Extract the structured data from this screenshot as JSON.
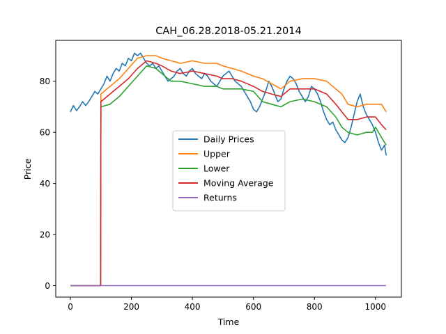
{
  "chart_data": {
    "type": "line",
    "title": "CAH_06.28.2018-05.21.2014",
    "xlabel": "Time",
    "ylabel": "Price",
    "xlim": [
      -48,
      1085
    ],
    "ylim": [
      -4.5,
      96
    ],
    "xticks": [
      0,
      200,
      400,
      600,
      800,
      1000
    ],
    "yticks": [
      0,
      20,
      40,
      60,
      80
    ],
    "grid": false,
    "legend_position": "center",
    "series": [
      {
        "name": "Daily Prices",
        "color": "#1f77b4",
        "x": [
          0,
          10,
          20,
          30,
          40,
          50,
          60,
          70,
          80,
          90,
          100,
          110,
          120,
          130,
          140,
          150,
          160,
          170,
          180,
          190,
          200,
          210,
          220,
          230,
          240,
          250,
          260,
          270,
          280,
          290,
          300,
          310,
          320,
          330,
          340,
          350,
          360,
          370,
          380,
          390,
          400,
          410,
          420,
          430,
          440,
          450,
          460,
          470,
          480,
          490,
          500,
          510,
          520,
          530,
          540,
          550,
          560,
          570,
          580,
          590,
          600,
          610,
          620,
          630,
          640,
          650,
          660,
          670,
          680,
          690,
          700,
          710,
          720,
          730,
          740,
          750,
          760,
          770,
          780,
          790,
          800,
          810,
          820,
          830,
          840,
          850,
          860,
          870,
          880,
          890,
          900,
          910,
          920,
          930,
          940,
          950,
          960,
          970,
          980,
          990,
          1000,
          1010,
          1020,
          1030,
          1035
        ],
        "y": [
          68,
          70.5,
          68.5,
          70,
          72,
          70.5,
          72,
          74,
          76,
          75,
          77,
          79,
          82,
          80,
          83,
          85,
          84,
          87,
          86,
          89,
          88,
          91,
          90,
          91,
          89,
          87,
          86,
          87,
          85,
          86,
          84,
          82,
          80,
          81,
          82,
          84,
          85,
          83,
          82,
          84,
          85,
          83,
          82,
          81,
          83,
          82,
          80,
          79,
          78,
          80,
          82,
          83,
          84,
          82,
          80,
          79,
          78,
          76,
          74,
          72,
          69,
          68,
          70,
          73,
          76,
          80,
          78,
          75,
          72,
          73,
          77,
          80,
          82,
          81,
          79,
          76,
          74,
          72,
          74,
          78,
          77,
          75,
          72,
          68,
          65,
          63,
          64,
          61,
          59,
          57,
          56,
          58,
          62,
          67,
          72,
          75,
          70,
          67,
          65,
          63,
          60,
          56,
          53,
          55,
          51
        ]
      },
      {
        "name": "Upper",
        "color": "#ff7f0e",
        "x": [
          0,
          98,
          99,
          100,
          130,
          160,
          190,
          220,
          250,
          280,
          300,
          330,
          360,
          400,
          440,
          480,
          500,
          530,
          560,
          600,
          630,
          660,
          690,
          720,
          760,
          800,
          840,
          870,
          890,
          910,
          940,
          970,
          1000,
          1020,
          1035
        ],
        "y": [
          0,
          0,
          0,
          75,
          78,
          81,
          85,
          89,
          90,
          90,
          89,
          88,
          87,
          88,
          87,
          87,
          86,
          85,
          84,
          82,
          81,
          79,
          77,
          80,
          81,
          81,
          80,
          77,
          75,
          71,
          70,
          71,
          71,
          71,
          68
        ]
      },
      {
        "name": "Lower",
        "color": "#2ca02c",
        "x": [
          0,
          98,
          99,
          100,
          130,
          160,
          190,
          220,
          250,
          280,
          300,
          330,
          360,
          400,
          440,
          480,
          500,
          530,
          560,
          600,
          630,
          660,
          690,
          720,
          760,
          800,
          840,
          870,
          890,
          910,
          940,
          970,
          990,
          1000,
          1020,
          1035
        ],
        "y": [
          0,
          0,
          0,
          70,
          71,
          74,
          78,
          82,
          86,
          85,
          83,
          80,
          80,
          79,
          78,
          78,
          77,
          77,
          77,
          76,
          72,
          71,
          70,
          72,
          73,
          72,
          70,
          66,
          62,
          60,
          59,
          60,
          60,
          62,
          58,
          55
        ]
      },
      {
        "name": "Moving Average",
        "color": "#d62728",
        "x": [
          0,
          98,
          99,
          100,
          130,
          160,
          190,
          220,
          250,
          280,
          300,
          330,
          360,
          400,
          440,
          480,
          500,
          530,
          560,
          600,
          630,
          660,
          690,
          720,
          760,
          800,
          840,
          870,
          890,
          910,
          940,
          970,
          1000,
          1020,
          1035
        ],
        "y": [
          0,
          0,
          0,
          72,
          75,
          78,
          81,
          85,
          88,
          87,
          86,
          84,
          83,
          84,
          83,
          82,
          81,
          81,
          80,
          78,
          76,
          75,
          74,
          77,
          77,
          77,
          75,
          71,
          68,
          65,
          65,
          66,
          66,
          63,
          61
        ]
      },
      {
        "name": "Returns",
        "color": "#9467bd",
        "x": [
          0,
          100,
          200,
          300,
          400,
          500,
          600,
          700,
          800,
          900,
          1000,
          1035
        ],
        "y": [
          0,
          0,
          0,
          0,
          0,
          0,
          0,
          0,
          0,
          0,
          0,
          0
        ]
      }
    ]
  }
}
